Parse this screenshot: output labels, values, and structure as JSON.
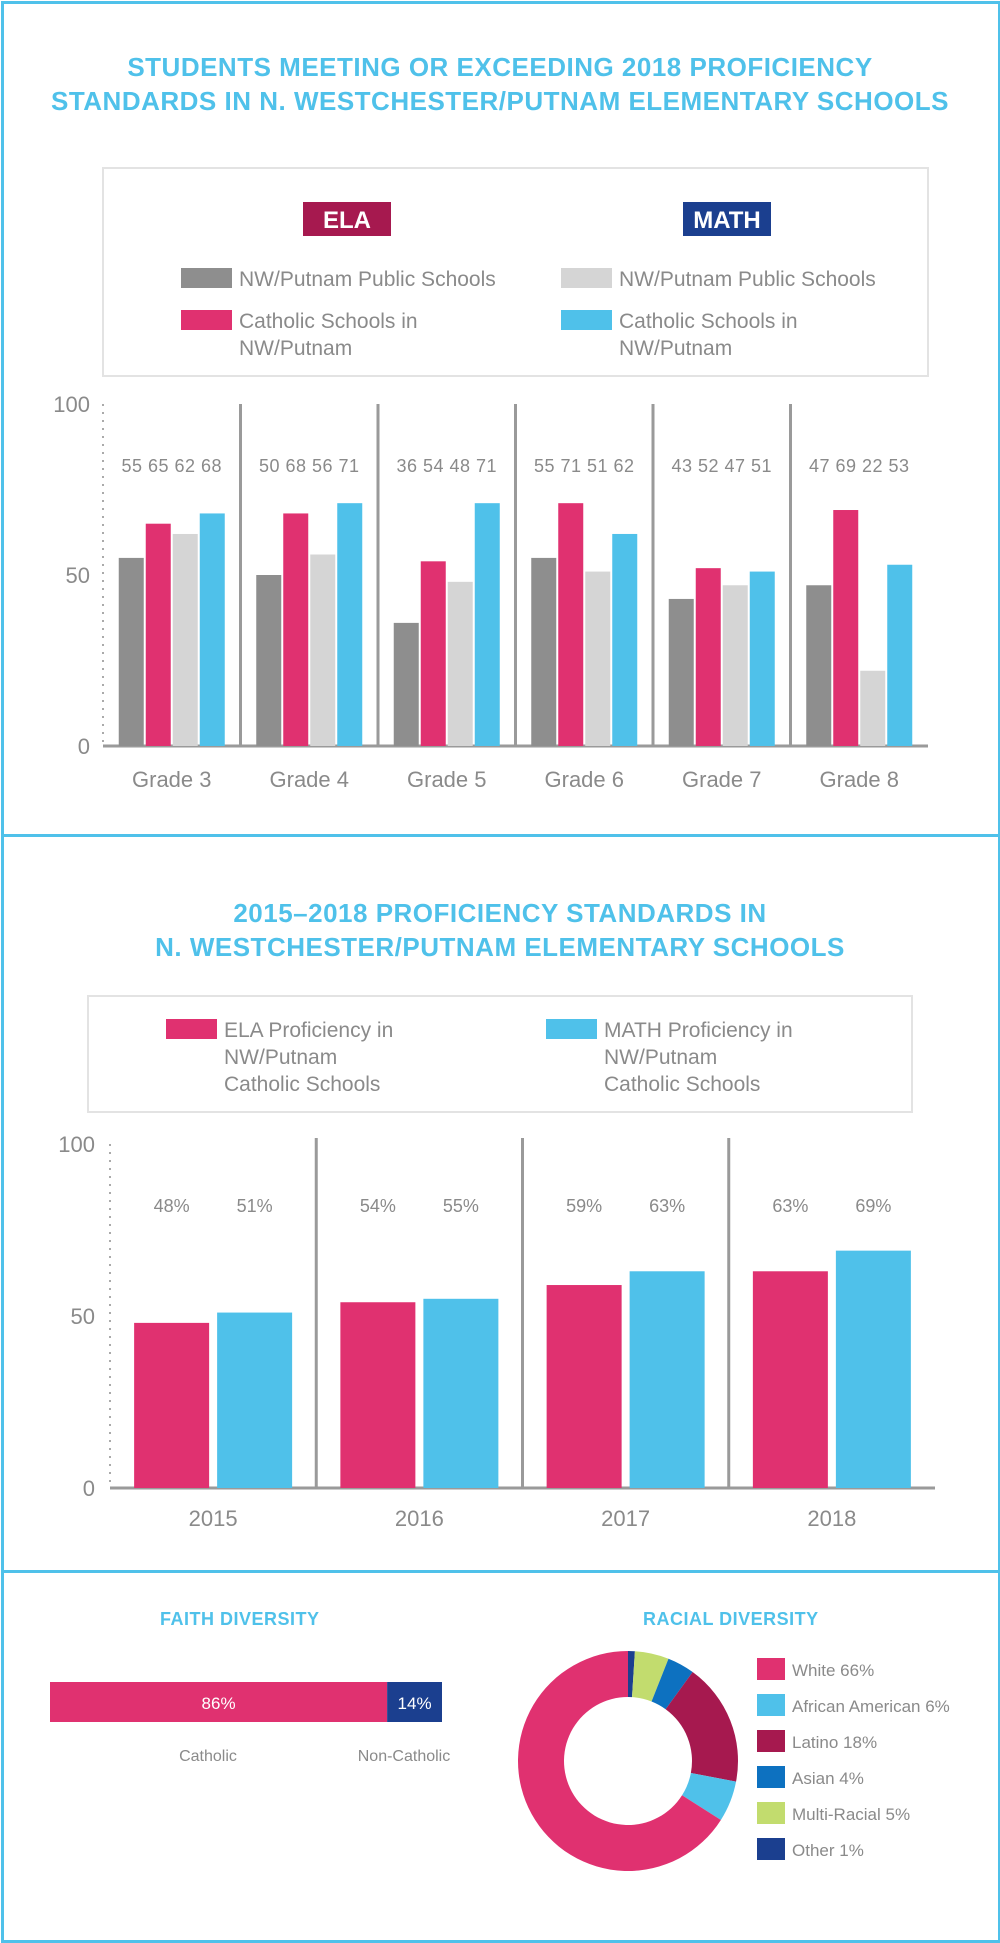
{
  "colors": {
    "accent": "#4fc1ea",
    "ela_public": "#8e8e8e",
    "ela_catholic": "#e03170",
    "math_public": "#d5d5d5",
    "math_catholic": "#4fc1ea",
    "ela_badge": "#a6194f",
    "math_badge": "#1b3f8f",
    "text_gray": "#8a8a8a",
    "axis_gray": "#9a9a9a"
  },
  "section1": {
    "title_line1": "STUDENTS MEETING OR EXCEEDING 2018 PROFICIENCY",
    "title_line2": "STANDARDS IN N. WESTCHESTER/PUTNAM ELEMENTARY SCHOOLS",
    "ela_badge": "ELA",
    "math_badge": "MATH",
    "legend": [
      {
        "lines": [
          "NW/Putnam Public Schools"
        ],
        "color": "#8e8e8e"
      },
      {
        "lines": [
          "Catholic Schools in",
          "NW/Putnam"
        ],
        "color": "#e03170"
      },
      {
        "lines": [
          "NW/Putnam Public Schools"
        ],
        "color": "#d5d5d5"
      },
      {
        "lines": [
          "Catholic Schools in",
          "NW/Putnam"
        ],
        "color": "#4fc1ea"
      }
    ]
  },
  "section2": {
    "title_line1": "2015–2018 PROFICIENCY STANDARDS IN",
    "title_line2": "N. WESTCHESTER/PUTNAM ELEMENTARY SCHOOLS",
    "legend": [
      {
        "lines": [
          "ELA Proficiency in",
          "NW/Putnam",
          "Catholic Schools"
        ],
        "color": "#e03170"
      },
      {
        "lines": [
          "MATH Proficiency in",
          "NW/Putnam",
          "Catholic Schools"
        ],
        "color": "#4fc1ea"
      }
    ]
  },
  "section3": {
    "faith_title": "FAITH DIVERSITY",
    "racial_title": "RACIAL DIVERSITY"
  },
  "chart_data": [
    {
      "type": "bar",
      "categories": [
        "Grade 3",
        "Grade 4",
        "Grade 5",
        "Grade 6",
        "Grade 7",
        "Grade 8"
      ],
      "ylim": [
        0,
        100
      ],
      "yticks": [
        0,
        50,
        100
      ],
      "series": [
        {
          "name": "NW/Putnam Public Schools",
          "group": "ELA",
          "color": "#8e8e8e",
          "values": [
            55,
            50,
            36,
            55,
            43,
            47
          ]
        },
        {
          "name": "Catholic Schools in NW/Putnam",
          "group": "ELA",
          "color": "#e03170",
          "values": [
            65,
            68,
            54,
            71,
            52,
            69
          ]
        },
        {
          "name": "NW/Putnam Public Schools",
          "group": "MATH",
          "color": "#d5d5d5",
          "values": [
            62,
            56,
            48,
            51,
            47,
            22
          ]
        },
        {
          "name": "Catholic Schools in NW/Putnam",
          "group": "MATH",
          "color": "#4fc1ea",
          "values": [
            68,
            71,
            71,
            62,
            51,
            53
          ]
        }
      ]
    },
    {
      "type": "bar",
      "categories": [
        "2015",
        "2016",
        "2017",
        "2018"
      ],
      "ylim": [
        0,
        100
      ],
      "yticks": [
        0,
        50,
        100
      ],
      "value_suffix": "%",
      "series": [
        {
          "name": "ELA Proficiency in NW/Putnam Catholic Schools",
          "color": "#e03170",
          "values": [
            48,
            54,
            59,
            63
          ]
        },
        {
          "name": "MATH Proficiency in NW/Putnam Catholic Schools",
          "color": "#4fc1ea",
          "values": [
            51,
            55,
            63,
            69
          ]
        }
      ]
    },
    {
      "type": "bar",
      "orientation": "horizontal-stacked",
      "title": "FAITH DIVERSITY",
      "segments": [
        {
          "label": "Catholic",
          "value": 86,
          "text": "86%",
          "color": "#e03170"
        },
        {
          "label": "Non-Catholic",
          "value": 14,
          "text": "14%",
          "color": "#1b3f8f"
        }
      ]
    },
    {
      "type": "pie",
      "donut": true,
      "title": "RACIAL DIVERSITY",
      "slices": [
        {
          "name": "Other",
          "value": 1,
          "label": "Other 1%",
          "color": "#1b3f8f"
        },
        {
          "name": "Multi-Racial",
          "value": 5,
          "label": "Multi-Racial 5%",
          "color": "#c2dc6e"
        },
        {
          "name": "Asian",
          "value": 4,
          "label": "Asian 4%",
          "color": "#0d71c0"
        },
        {
          "name": "Latino",
          "value": 18,
          "label": "Latino 18%",
          "color": "#a6194f"
        },
        {
          "name": "African American",
          "value": 6,
          "label": "African American 6%",
          "color": "#4fc1ea"
        },
        {
          "name": "White",
          "value": 66,
          "label": "White 66%",
          "color": "#e03170"
        }
      ],
      "legend_order": [
        "White",
        "African American",
        "Latino",
        "Asian",
        "Multi-Racial",
        "Other"
      ]
    }
  ]
}
